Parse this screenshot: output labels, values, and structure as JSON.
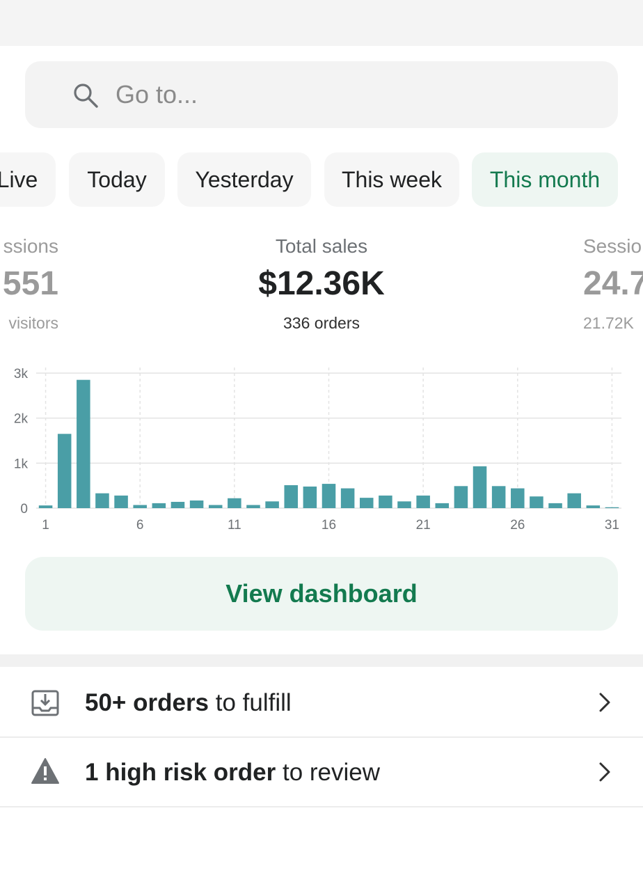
{
  "search": {
    "placeholder": "Go to..."
  },
  "tabs": [
    {
      "label": "Live",
      "active": false
    },
    {
      "label": "Today",
      "active": false
    },
    {
      "label": "Yesterday",
      "active": false
    },
    {
      "label": "This week",
      "active": false
    },
    {
      "label": "This month",
      "active": true
    }
  ],
  "stats": [
    {
      "label": "ssions",
      "value": "551",
      "sub": "visitors"
    },
    {
      "label": "Total sales",
      "value": "$12.36K",
      "sub": "336 orders"
    },
    {
      "label": "Sessio",
      "value": "24.7",
      "sub": "21.72K"
    }
  ],
  "chart_data": {
    "type": "bar",
    "categories": [
      "1",
      "2",
      "3",
      "4",
      "5",
      "6",
      "7",
      "8",
      "9",
      "10",
      "11",
      "12",
      "13",
      "14",
      "15",
      "16",
      "17",
      "18",
      "19",
      "20",
      "21",
      "22",
      "23",
      "24",
      "25",
      "26",
      "27",
      "28",
      "29",
      "30",
      "31"
    ],
    "values": [
      60,
      1650,
      2850,
      330,
      280,
      70,
      110,
      140,
      170,
      70,
      220,
      70,
      150,
      510,
      480,
      540,
      440,
      230,
      280,
      150,
      280,
      110,
      490,
      930,
      490,
      440,
      260,
      110,
      330,
      60,
      20
    ],
    "x_tick_labels": [
      "1",
      "6",
      "11",
      "16",
      "21",
      "26",
      "31"
    ],
    "y_tick_labels": [
      "0",
      "1k",
      "2k",
      "3k"
    ],
    "ylim": [
      0,
      3000
    ],
    "grid": true,
    "colors": {
      "bar": "#4a9ea6",
      "grid": "#e3e3e3",
      "tick": "#6d7175"
    }
  },
  "dashboard_button": {
    "label": "View dashboard"
  },
  "tasks": [
    {
      "bold": "50+ orders",
      "rest": " to fulfill",
      "icon": "inbox-download-icon"
    },
    {
      "bold": "1 high risk order",
      "rest": " to review",
      "icon": "warning-icon"
    }
  ],
  "colors": {
    "accent": "#137a4f",
    "accent_bg": "#eef6f2"
  }
}
